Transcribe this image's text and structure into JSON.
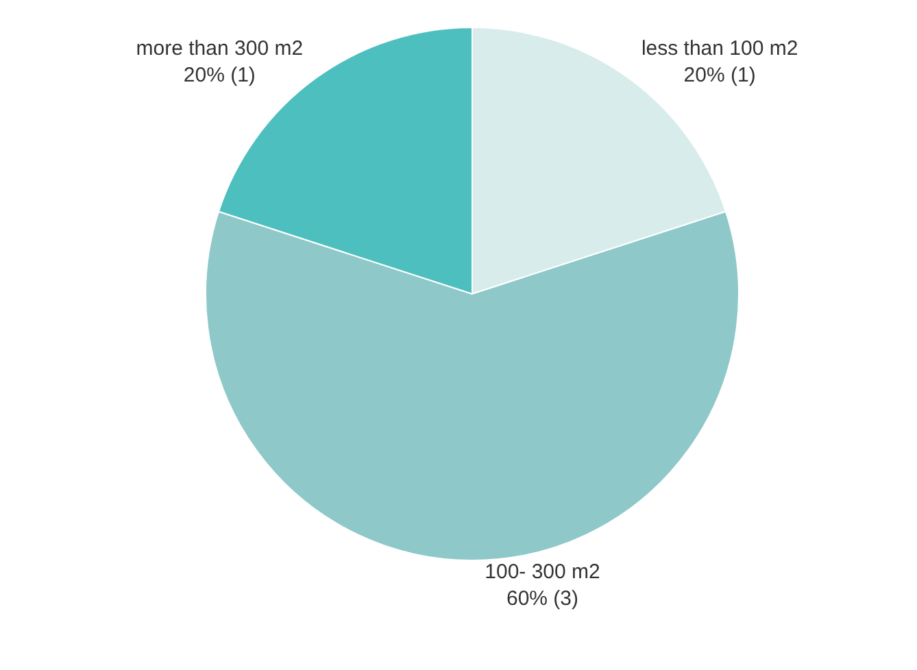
{
  "chart_data": {
    "type": "pie",
    "categories": [
      "less than 100 m2",
      "100- 300 m2",
      "more than 300 m2"
    ],
    "values": [
      20,
      60,
      20
    ],
    "value_labels": [
      "20% (1)",
      "60% (3)",
      "20% (1)"
    ],
    "colors": [
      "#d8ecec",
      "#8ec8c9",
      "#4dbfbf"
    ],
    "legend": false
  }
}
